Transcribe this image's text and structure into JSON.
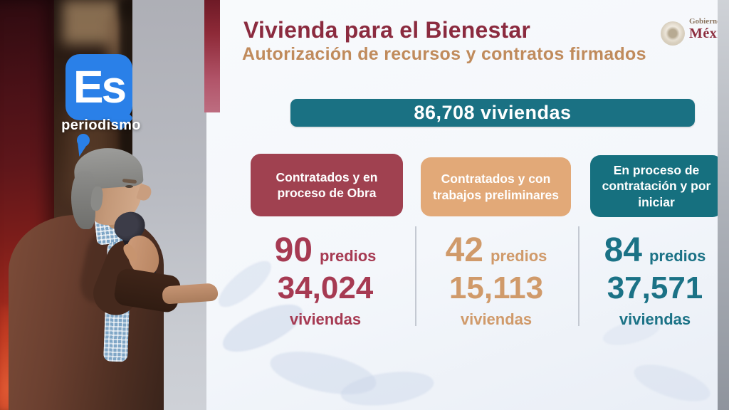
{
  "watermark": {
    "brand": "Es",
    "tagline": "periodismo",
    "color": "#2a80e8"
  },
  "slide": {
    "title": "Vivienda para el Bienestar",
    "subtitle": "Autorización de recursos y contratos firmados",
    "gov_logo": {
      "line1": "Gobierno",
      "line2": "México"
    },
    "total_banner": "86,708 viviendas",
    "banner_color": "#1a7183",
    "columns": [
      {
        "header": "Contratados y en proceso de Obra",
        "predios": "90",
        "predios_label": "predios",
        "viviendas": "34,024",
        "viviendas_label": "viviendas",
        "color": "#a04150",
        "text_color": "#a63a52"
      },
      {
        "header": "Contratados y con trabajos preliminares",
        "predios": "42",
        "predios_label": "predios",
        "viviendas": "15,113",
        "viviendas_label": "viviendas",
        "color": "#e2a978",
        "text_color": "#d09a6a"
      },
      {
        "header": "En proceso de contratación y por iniciar",
        "predios": "84",
        "predios_label": "predios",
        "viviendas": "37,571",
        "viviendas_label": "viviendas",
        "color": "#16707f",
        "text_color": "#1b7286"
      }
    ]
  },
  "chart_data": {
    "type": "table",
    "title": "Vivienda para el Bienestar",
    "subtitle": "Autorización de recursos y contratos firmados",
    "total_label": "86,708 viviendas",
    "total_viviendas": 86708,
    "categories": [
      "Contratados y en proceso de Obra",
      "Contratados y con trabajos preliminares",
      "En proceso de contratación y por iniciar"
    ],
    "series": [
      {
        "name": "predios",
        "values": [
          90,
          42,
          84
        ]
      },
      {
        "name": "viviendas",
        "values": [
          34024,
          15113,
          37571
        ]
      }
    ]
  }
}
